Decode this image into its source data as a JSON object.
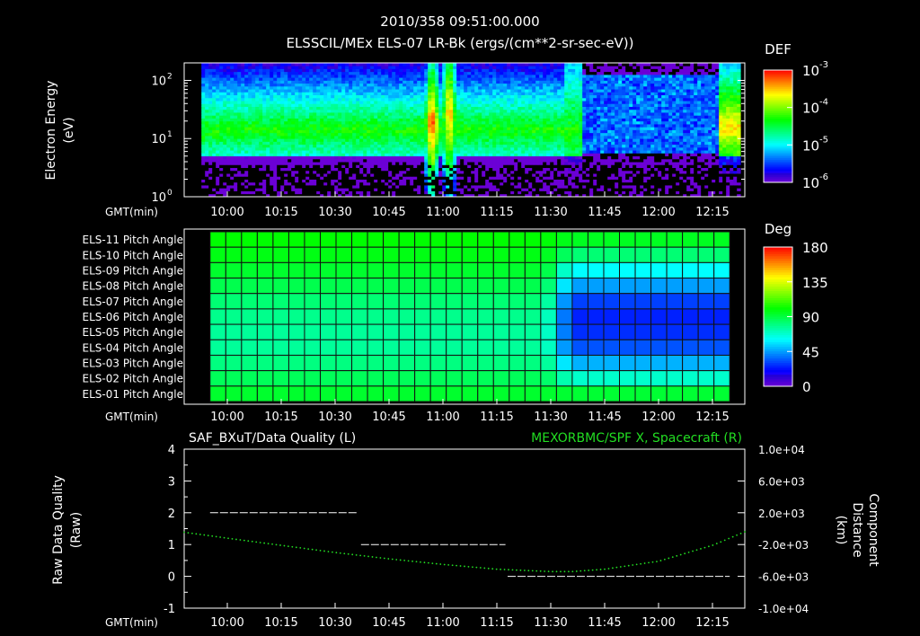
{
  "header": {
    "timestamp": "2010/358 09:51:00.000",
    "title": "ELSSCIL/MEx ELS-07 LR-Bk  (ergs/(cm**2-sr-sec-eV))"
  },
  "chart_data": [
    {
      "type": "heatmap",
      "name": "electron-spectrogram",
      "ylabel": [
        "Electron Energy",
        "(eV)"
      ],
      "xlabel": "GMT(min)",
      "yscale": "log",
      "ylim": [
        1,
        200
      ],
      "y_ticks": [
        {
          "value": 1,
          "base": "10",
          "exp": "0"
        },
        {
          "value": 10,
          "base": "10",
          "exp": "1"
        },
        {
          "value": 100,
          "base": "10",
          "exp": "2"
        }
      ],
      "xlim": [
        9.8,
        12.4
      ],
      "x_ticks": [
        {
          "value": 10.0,
          "label": "10:00"
        },
        {
          "value": 10.25,
          "label": "10:15"
        },
        {
          "value": 10.5,
          "label": "10:30"
        },
        {
          "value": 10.75,
          "label": "10:45"
        },
        {
          "value": 11.0,
          "label": "11:00"
        },
        {
          "value": 11.25,
          "label": "11:15"
        },
        {
          "value": 11.5,
          "label": "11:30"
        },
        {
          "value": 11.75,
          "label": "11:45"
        },
        {
          "value": 12.0,
          "label": "12:00"
        },
        {
          "value": 12.25,
          "label": "12:15"
        }
      ],
      "data_range_hours": [
        9.88,
        12.38
      ],
      "features": [
        {
          "name": "main-band",
          "t_start": 9.88,
          "t_end": 11.62,
          "e_low_eV": 5,
          "e_high_eV": 40,
          "peak_log_def": -4.3
        },
        {
          "name": "burst-1",
          "t_center": 10.95,
          "e_low_eV": 5,
          "e_high_eV": 70,
          "peak_log_def": -3.2
        },
        {
          "name": "burst-2",
          "t_center": 11.03,
          "e_low_eV": 5,
          "e_high_eV": 100,
          "peak_log_def": -3.5
        },
        {
          "name": "late-band",
          "t_start": 12.28,
          "t_end": 12.38,
          "e_low_eV": 5,
          "e_high_eV": 40,
          "peak_log_def": -3.6
        }
      ],
      "colorbar": {
        "label": "DEF",
        "scale": "log",
        "range": [
          -6,
          -3
        ],
        "ticks": [
          {
            "value": -3,
            "base": "10",
            "exp": "-3"
          },
          {
            "value": -4,
            "base": "10",
            "exp": "-4"
          },
          {
            "value": -5,
            "base": "10",
            "exp": "-5"
          },
          {
            "value": -6,
            "base": "10",
            "exp": "-6"
          }
        ]
      }
    },
    {
      "type": "heatmap",
      "name": "pitch-angle-grid",
      "xlabel": "GMT(min)",
      "xlim": [
        9.8,
        12.4
      ],
      "x_ticks": [
        {
          "value": 10.0,
          "label": "10:00"
        },
        {
          "value": 10.25,
          "label": "10:15"
        },
        {
          "value": 10.5,
          "label": "10:30"
        },
        {
          "value": 10.75,
          "label": "10:45"
        },
        {
          "value": 11.0,
          "label": "11:00"
        },
        {
          "value": 11.25,
          "label": "11:15"
        },
        {
          "value": 11.5,
          "label": "11:30"
        },
        {
          "value": 11.75,
          "label": "11:45"
        },
        {
          "value": 12.0,
          "label": "12:00"
        },
        {
          "value": 12.25,
          "label": "12:15"
        }
      ],
      "time_bins": {
        "start": 9.92,
        "end": 12.33,
        "count": 33
      },
      "transition_hours": [
        11.45,
        11.62
      ],
      "rows": [
        {
          "label": "ELS-11 Pitch Angle",
          "before": 100,
          "after": 95
        },
        {
          "label": "ELS-10 Pitch Angle",
          "before": 97,
          "after": 82
        },
        {
          "label": "ELS-09 Pitch Angle",
          "before": 93,
          "after": 60
        },
        {
          "label": "ELS-08 Pitch Angle",
          "before": 88,
          "after": 45
        },
        {
          "label": "ELS-07 Pitch Angle",
          "before": 82,
          "after": 30
        },
        {
          "label": "ELS-06 Pitch Angle",
          "before": 78,
          "after": 25
        },
        {
          "label": "ELS-05 Pitch Angle",
          "before": 76,
          "after": 27
        },
        {
          "label": "ELS-04 Pitch Angle",
          "before": 76,
          "after": 33
        },
        {
          "label": "ELS-03 Pitch Angle",
          "before": 80,
          "after": 48
        },
        {
          "label": "ELS-02 Pitch Angle",
          "before": 86,
          "after": 68
        },
        {
          "label": "ELS-01 Pitch Angle",
          "before": 93,
          "after": 92
        }
      ],
      "colorbar": {
        "label": "Deg",
        "range": [
          0,
          180
        ],
        "ticks": [
          {
            "value": 180,
            "label": "180"
          },
          {
            "value": 135,
            "label": "135"
          },
          {
            "value": 90,
            "label": "90"
          },
          {
            "value": 45,
            "label": "45"
          },
          {
            "value": 0,
            "label": "0"
          }
        ]
      }
    },
    {
      "type": "line",
      "name": "quality-and-distance",
      "title_left": "SAF_BXuT/Data Quality (L)",
      "title_right": "MEXORBMC/SPF X, Spacecraft (R)",
      "ylabel_left": [
        "Raw Data Quality",
        "(Raw)"
      ],
      "ylabel_right": [
        "Component",
        "Distance",
        "(km)"
      ],
      "xlabel": "GMT(min)",
      "xlim": [
        9.8,
        12.4
      ],
      "x_ticks": [
        {
          "value": 10.0,
          "label": "10:00"
        },
        {
          "value": 10.25,
          "label": "10:15"
        },
        {
          "value": 10.5,
          "label": "10:30"
        },
        {
          "value": 10.75,
          "label": "10:45"
        },
        {
          "value": 11.0,
          "label": "11:00"
        },
        {
          "value": 11.25,
          "label": "11:15"
        },
        {
          "value": 11.5,
          "label": "11:30"
        },
        {
          "value": 11.75,
          "label": "11:45"
        },
        {
          "value": 12.0,
          "label": "12:00"
        },
        {
          "value": 12.25,
          "label": "12:15"
        }
      ],
      "ylim_left": [
        -1,
        4
      ],
      "y_ticks_left": [
        {
          "value": 4,
          "label": "4"
        },
        {
          "value": 3,
          "label": "3"
        },
        {
          "value": 2,
          "label": "2"
        },
        {
          "value": 1,
          "label": "1"
        },
        {
          "value": 0,
          "label": "0"
        },
        {
          "value": -1,
          "label": "-1"
        }
      ],
      "ylim_right": [
        -10000,
        10000
      ],
      "y_ticks_right": [
        {
          "value": 10000,
          "label": "1.0e+04"
        },
        {
          "value": 6000,
          "label": "6.0e+03"
        },
        {
          "value": 2000,
          "label": "2.0e+03"
        },
        {
          "value": -2000,
          "label": "-2.0e+03"
        },
        {
          "value": -6000,
          "label": "-6.0e+03"
        },
        {
          "value": -10000,
          "label": "-1.0e+04"
        }
      ],
      "quality_segments": [
        {
          "t_start": 9.92,
          "t_end": 10.6,
          "value": 2
        },
        {
          "t_start": 10.62,
          "t_end": 11.29,
          "value": 1
        },
        {
          "t_start": 11.3,
          "t_end": 12.33,
          "value": 0
        }
      ],
      "distance_series": {
        "name": "MEXORBMC/SPF X",
        "color": "#22dd22",
        "points": [
          {
            "t": 9.8,
            "km": -450
          },
          {
            "t": 10.0,
            "km": -1200
          },
          {
            "t": 10.25,
            "km": -2100
          },
          {
            "t": 10.5,
            "km": -3000
          },
          {
            "t": 10.75,
            "km": -3800
          },
          {
            "t": 11.0,
            "km": -4500
          },
          {
            "t": 11.25,
            "km": -5100
          },
          {
            "t": 11.5,
            "km": -5400
          },
          {
            "t": 11.6,
            "km": -5400
          },
          {
            "t": 11.75,
            "km": -5100
          },
          {
            "t": 12.0,
            "km": -4100
          },
          {
            "t": 12.25,
            "km": -2100
          },
          {
            "t": 12.4,
            "km": -400
          }
        ]
      }
    }
  ]
}
